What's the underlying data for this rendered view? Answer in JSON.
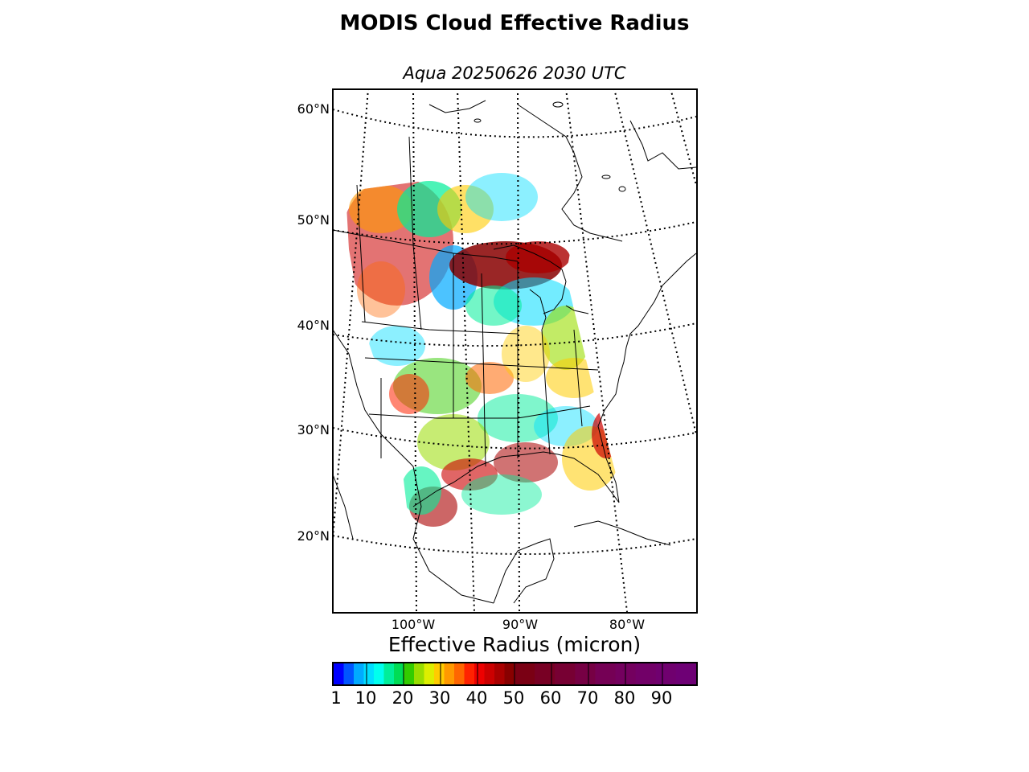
{
  "title": "MODIS Cloud Effective Radius",
  "subtitle": "Aqua 20250626 2030 UTC",
  "map": {
    "latitude_labels": [
      "60°N",
      "50°N",
      "40°N",
      "30°N",
      "20°N"
    ],
    "longitude_labels": [
      "100°W",
      "90°W",
      "80°W"
    ],
    "coastline_color": "#000000",
    "grid_style": "dotted"
  },
  "colorbar": {
    "label": "Effective Radius (micron)",
    "tick_labels": [
      "1",
      "10",
      "20",
      "30",
      "40",
      "50",
      "60",
      "70",
      "80",
      "90"
    ],
    "range": [
      1,
      100
    ],
    "colors": [
      "#0000ff",
      "#0055ff",
      "#00aaff",
      "#00ddff",
      "#00ffee",
      "#00ee99",
      "#00dd55",
      "#33cc00",
      "#99dd00",
      "#ddee00",
      "#ffcc00",
      "#ff9900",
      "#ff6600",
      "#ff2200",
      "#ee0000",
      "#cc0000",
      "#aa0000",
      "#880000",
      "#7a0014",
      "#780024",
      "#770033",
      "#760044",
      "#750055",
      "#74005f",
      "#720068",
      "#70006f",
      "#6e0075"
    ]
  }
}
